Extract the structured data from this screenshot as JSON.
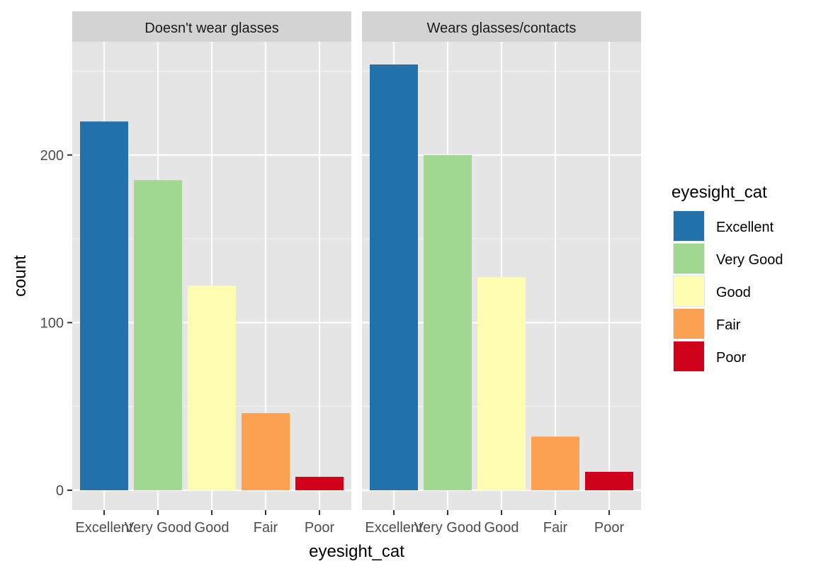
{
  "chart_data": {
    "type": "bar",
    "xlabel": "eyesight_cat",
    "ylabel": "count",
    "ylim": [
      0,
      260
    ],
    "yticks": [
      0,
      100,
      200
    ],
    "categories": [
      "Excellent",
      "Very Good",
      "Good",
      "Fair",
      "Poor"
    ],
    "colors": [
      "#2171ad",
      "#a0d892",
      "#fefdb2",
      "#fca052",
      "#d0021b"
    ],
    "panel_background": "#e5e5e5",
    "strip_background": "#d3d3d3",
    "grid": true,
    "legend": {
      "title": "eyesight_cat",
      "position": "right",
      "entries": [
        "Excellent",
        "Very Good",
        "Good",
        "Fair",
        "Poor"
      ]
    },
    "panels": [
      {
        "label": "Doesn't wear glasses",
        "values": [
          220,
          185,
          122,
          46,
          8
        ]
      },
      {
        "label": "Wears glasses/contacts",
        "values": [
          254,
          200,
          127,
          32,
          11
        ]
      }
    ]
  }
}
